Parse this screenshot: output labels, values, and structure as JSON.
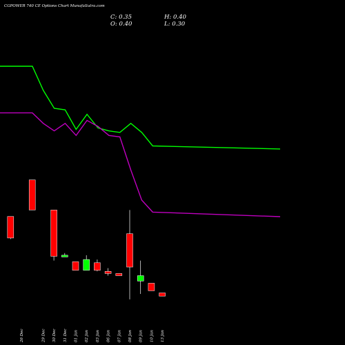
{
  "header": {
    "title": "CGPOWER 740  CE Options  Chart MunafaSutra.com",
    "close": "C: 0.35",
    "open": "O: 0.40",
    "high": "H: 0.40",
    "low": "L: 0.30"
  },
  "chart_data": {
    "type": "candlestick",
    "title": "CGPOWER 740  CE Options  Chart MunafaSutra.com",
    "categories": [
      "26 Dec",
      "27 Dec",
      "28 Dec",
      "30 Dec",
      "31 Dec",
      "01 Jan",
      "02 Jan",
      "03 Jan",
      "06 Jan",
      "07 Jan",
      "08 Jan",
      "09 Jan",
      "10 Jan",
      "13 Jan"
    ],
    "x_labels_shown": [
      "26 Dec",
      "",
      "29 Dec",
      "30 Dec",
      "31 Dec",
      "01 Jan",
      "02 Jan",
      "03 Jan",
      "06 Jan",
      "07 Jan",
      "08 Jan",
      "09 Jan",
      "10 Jan",
      "13 Jan"
    ],
    "candles": [
      {
        "x": "27 Dec",
        "open": 6.1,
        "high": 6.1,
        "low": 4.7,
        "close": 4.7,
        "color": "red"
      },
      {
        "x": "29 Dec",
        "open": 4.4,
        "high": 4.4,
        "low": 3.35,
        "close": 3.4,
        "color": "red"
      },
      {
        "x": "30 Dec",
        "open": 4.7,
        "high": 4.7,
        "low": 2.35,
        "close": 2.55,
        "color": "red"
      },
      {
        "x": "31 Dec",
        "open": 2.55,
        "high": 2.7,
        "low": 2.55,
        "close": 2.6,
        "color": "green"
      },
      {
        "x": "01 Jan",
        "open": 2.3,
        "high": 2.3,
        "low": 1.9,
        "close": 1.9,
        "color": "red"
      },
      {
        "x": "02 Jan",
        "open": 1.9,
        "high": 2.6,
        "low": 1.9,
        "close": 2.4,
        "color": "green"
      },
      {
        "x": "03 Jan",
        "open": 2.25,
        "high": 2.4,
        "low": 1.85,
        "close": 1.9,
        "color": "red"
      },
      {
        "x": "06 Jan",
        "open": 1.85,
        "high": 2.0,
        "low": 1.65,
        "close": 1.75,
        "color": "red"
      },
      {
        "x": "07 Jan",
        "open": 1.75,
        "high": 1.75,
        "low": 1.65,
        "close": 1.65,
        "color": "red"
      },
      {
        "x": "08 Jan",
        "open": 3.6,
        "high": 4.7,
        "low": 0.55,
        "close": 2.05,
        "color": "red"
      },
      {
        "x": "09 Jan",
        "open": 1.4,
        "high": 2.35,
        "low": 0.8,
        "close": 1.65,
        "color": "green"
      },
      {
        "x": "10 Jan",
        "open": 1.3,
        "high": 1.3,
        "low": 0.95,
        "close": 0.95,
        "color": "red"
      },
      {
        "x": "13 Jan",
        "open": 0.85,
        "high": 0.85,
        "low": 0.7,
        "close": 0.7,
        "color": "red"
      }
    ],
    "series": [
      {
        "color": "#00ff00",
        "values": [
          8.2,
          8.2,
          7.4,
          6.8,
          6.75,
          6.1,
          6.6,
          6.15,
          6.05,
          6.0,
          6.3,
          6.0,
          5.55,
          5.45
        ]
      },
      {
        "color": "#c000c0",
        "values": [
          6.65,
          6.65,
          6.3,
          6.05,
          6.3,
          5.9,
          6.4,
          6.2,
          5.9,
          5.85,
          4.75,
          3.75,
          3.35,
          3.2
        ]
      }
    ]
  }
}
